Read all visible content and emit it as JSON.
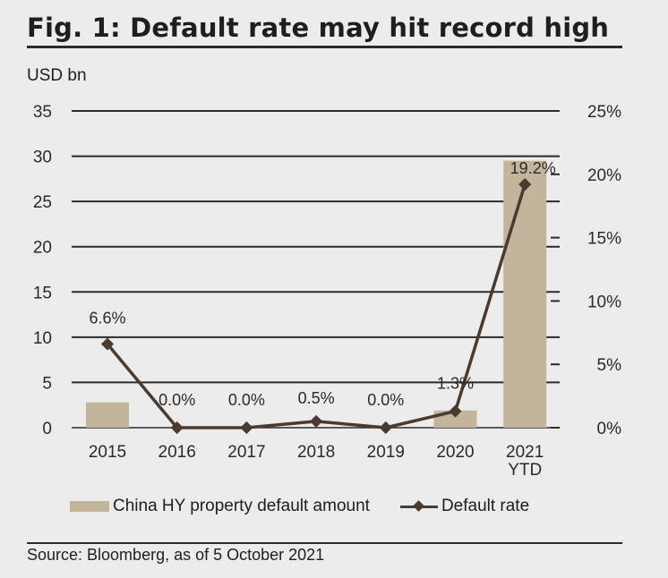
{
  "figure": {
    "title": "Fig. 1: Default rate may hit record high",
    "unit_label": "USD bn",
    "source": "Source: Bloomberg, as of 5 October 2021"
  },
  "colors": {
    "bar": "#c2b59b",
    "line": "#4b3a2f",
    "grid": "#2a2a2a",
    "background": "#ececec"
  },
  "chart_data": {
    "type": "bar",
    "categories": [
      "2015",
      "2016",
      "2017",
      "2018",
      "2019",
      "2020",
      "2021\nYTD"
    ],
    "series": [
      {
        "name": "China HY property default amount",
        "type": "bar",
        "axis": "left",
        "values": [
          2.8,
          0.0,
          0.0,
          0.0,
          0.0,
          1.9,
          29.5
        ]
      },
      {
        "name": "Default rate",
        "type": "line",
        "axis": "right",
        "values": [
          6.6,
          0.0,
          0.0,
          0.5,
          0.0,
          1.3,
          19.2
        ],
        "labels": [
          "6.6%",
          "0.0%",
          "0.0%",
          "0.5%",
          "0.0%",
          "1.3%",
          "19.2%"
        ]
      }
    ],
    "y_left": {
      "label": "USD bn",
      "range": [
        0,
        35
      ],
      "ticks": [
        "0",
        "5",
        "10",
        "15",
        "20",
        "25",
        "30",
        "35"
      ]
    },
    "y_right": {
      "range": [
        0,
        25
      ],
      "ticks": [
        "0%",
        "5%",
        "10%",
        "15%",
        "20%",
        "25%"
      ]
    },
    "grid": true,
    "legend_position": "bottom"
  }
}
